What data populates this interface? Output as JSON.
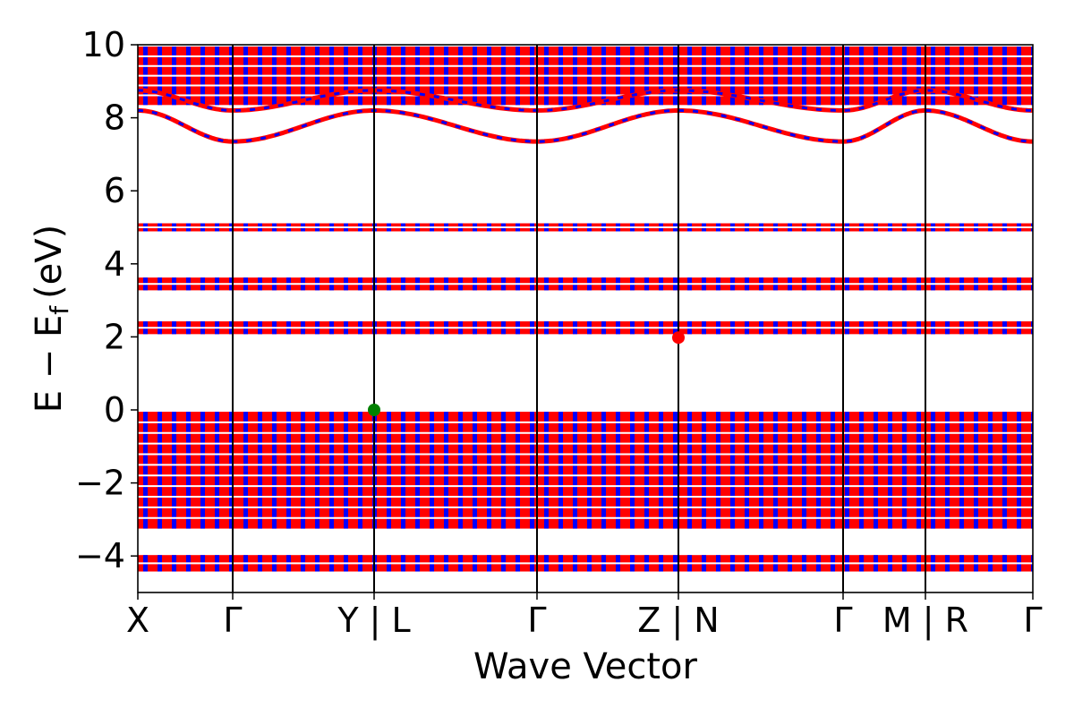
{
  "chart_data": {
    "type": "line",
    "xlabel": "Wave Vector",
    "ylabel_main": "E − E",
    "ylabel_sub": "f",
    "ylabel_unit": "(eV)",
    "ylim": [
      -5,
      10
    ],
    "y_ticks": [
      {
        "value": 10,
        "label": "10"
      },
      {
        "value": 8,
        "label": "8"
      },
      {
        "value": 6,
        "label": "6"
      },
      {
        "value": 4,
        "label": "4"
      },
      {
        "value": 2,
        "label": "2"
      },
      {
        "value": 0,
        "label": "0"
      },
      {
        "value": -2,
        "label": "−2"
      },
      {
        "value": -4,
        "label": "−4"
      }
    ],
    "kpath": [
      {
        "pos": 0.0,
        "label": "X"
      },
      {
        "pos": 0.106,
        "label": "Γ"
      },
      {
        "pos": 0.264,
        "label": "Y | L"
      },
      {
        "pos": 0.446,
        "label": "Γ"
      },
      {
        "pos": 0.604,
        "label": "Z | N"
      },
      {
        "pos": 0.788,
        "label": "Γ"
      },
      {
        "pos": 0.88,
        "label": "M | R"
      },
      {
        "pos": 1.0,
        "label": "Γ"
      }
    ],
    "colors": {
      "band_a": "#ff0000",
      "band_b": "#0000ff",
      "vbm": "#008000",
      "cbm": "#ff0000"
    },
    "markers": [
      {
        "name": "vbm",
        "x": 0.264,
        "y": 0.0
      },
      {
        "name": "cbm",
        "x": 0.604,
        "y": 1.98
      }
    ],
    "bands": {
      "flat_groups": [
        {
          "center": 5.0,
          "width": 0.22
        },
        {
          "center": 3.45,
          "width": 0.35
        },
        {
          "center": 2.25,
          "width": 0.35
        },
        {
          "center": -1.65,
          "width": 3.2
        },
        {
          "center": -4.2,
          "width": 0.45
        }
      ],
      "upper_group": {
        "center": 9.15,
        "width": 1.6
      },
      "dispersive": [
        {
          "ymin": 7.35,
          "ymax": 8.2
        },
        {
          "ymin": 8.2,
          "ymax": 8.75
        }
      ]
    }
  }
}
